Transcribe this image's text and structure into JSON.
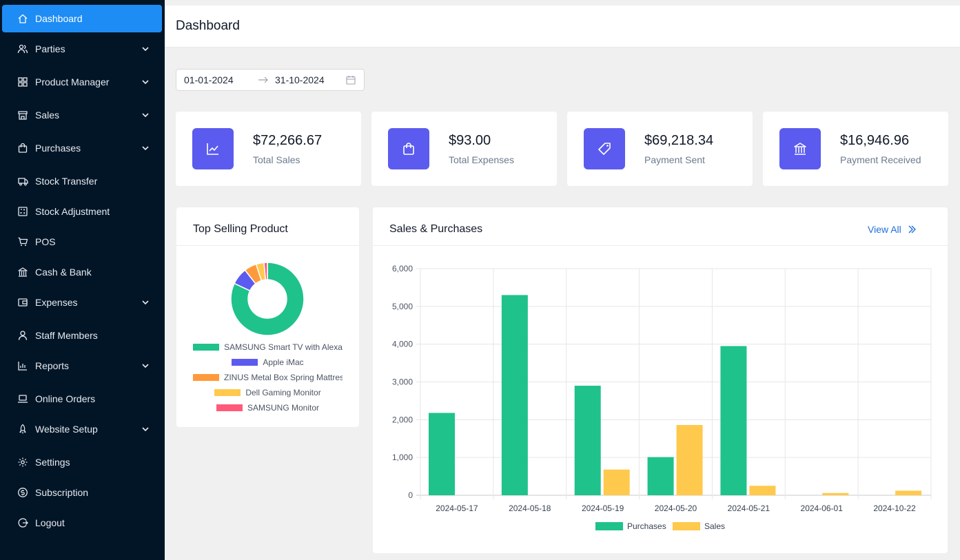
{
  "sidebar": {
    "items": [
      {
        "key": "dashboard",
        "label": "Dashboard",
        "icon": "home-icon",
        "active": true,
        "chevron": false
      },
      {
        "key": "parties",
        "label": "Parties",
        "icon": "users-icon",
        "chevron": true
      },
      {
        "key": "product-manager",
        "label": "Product Manager",
        "icon": "grid-icon",
        "chevron": true
      },
      {
        "key": "sales",
        "label": "Sales",
        "icon": "store-icon",
        "chevron": true
      },
      {
        "key": "purchases",
        "label": "Purchases",
        "icon": "shopping-bag-icon",
        "chevron": true
      },
      {
        "key": "stock-transfer",
        "label": "Stock Transfer",
        "icon": "truck-icon",
        "chevron": false
      },
      {
        "key": "stock-adjustment",
        "label": "Stock Adjustment",
        "icon": "calculator-icon",
        "chevron": false
      },
      {
        "key": "pos",
        "label": "POS",
        "icon": "cart-icon",
        "chevron": false
      },
      {
        "key": "cash-bank",
        "label": "Cash & Bank",
        "icon": "bank-icon",
        "chevron": false
      },
      {
        "key": "expenses",
        "label": "Expenses",
        "icon": "wallet-icon",
        "chevron": true
      },
      {
        "key": "staff-members",
        "label": "Staff Members",
        "icon": "user-icon",
        "chevron": false
      },
      {
        "key": "reports",
        "label": "Reports",
        "icon": "bar-chart-icon",
        "chevron": true
      },
      {
        "key": "online-orders",
        "label": "Online Orders",
        "icon": "laptop-icon",
        "chevron": false
      },
      {
        "key": "website-setup",
        "label": "Website Setup",
        "icon": "rocket-icon",
        "chevron": true
      },
      {
        "key": "settings",
        "label": "Settings",
        "icon": "gear-icon",
        "chevron": false
      },
      {
        "key": "subscription",
        "label": "Subscription",
        "icon": "dollar-circle-icon",
        "chevron": false
      },
      {
        "key": "logout",
        "label": "Logout",
        "icon": "logout-icon",
        "chevron": false
      }
    ]
  },
  "header": {
    "title": "Dashboard"
  },
  "date_range": {
    "start": "01-01-2024",
    "end": "31-10-2024"
  },
  "stats": [
    {
      "value": "$72,266.67",
      "label": "Total Sales",
      "icon": "line-chart-icon"
    },
    {
      "value": "$93.00",
      "label": "Total Expenses",
      "icon": "shopping-bag-icon"
    },
    {
      "value": "$69,218.34",
      "label": "Payment Sent",
      "icon": "tag-icon"
    },
    {
      "value": "$16,946.96",
      "label": "Payment Received",
      "icon": "bank-icon"
    }
  ],
  "colors": {
    "accent": "#1e8cf5",
    "stat_icon_bg": "#5b5bef",
    "sidebar_bg": "#021526"
  },
  "top_selling": {
    "title": "Top Selling Product"
  },
  "sales_purchases": {
    "title": "Sales & Purchases",
    "view_all": "View All"
  },
  "chart_data": [
    {
      "type": "pie",
      "donut": true,
      "labels": [
        "SAMSUNG Smart TV with Alexa",
        "Apple iMac",
        "ZINUS Metal Box Spring Mattres",
        "Dell Gaming Monitor",
        "SAMSUNG Monitor"
      ],
      "values": [
        82,
        7.5,
        5.5,
        3.5,
        1.5
      ],
      "colors": [
        "#1fc28b",
        "#5b5bef",
        "#ff9a3c",
        "#ffc94d",
        "#ff5a7a"
      ],
      "legend": "bottom"
    },
    {
      "type": "bar",
      "categories": [
        "2024-05-17",
        "2024-05-18",
        "2024-05-19",
        "2024-05-20",
        "2024-05-21",
        "2024-06-01",
        "2024-10-22"
      ],
      "y_ticks": [
        "0",
        "1,000",
        "2,000",
        "3,000",
        "4,000",
        "5,000",
        "6,000"
      ],
      "series": [
        {
          "name": "Purchases",
          "color": "#1fc28b",
          "values": [
            2180,
            5300,
            2900,
            1010,
            3950,
            0,
            0
          ]
        },
        {
          "name": "Sales",
          "color": "#ffc94d",
          "values": [
            0,
            0,
            680,
            1860,
            250,
            60,
            120
          ]
        }
      ],
      "ylim": [
        0,
        6000
      ],
      "grid": true,
      "legend": "bottom"
    }
  ]
}
